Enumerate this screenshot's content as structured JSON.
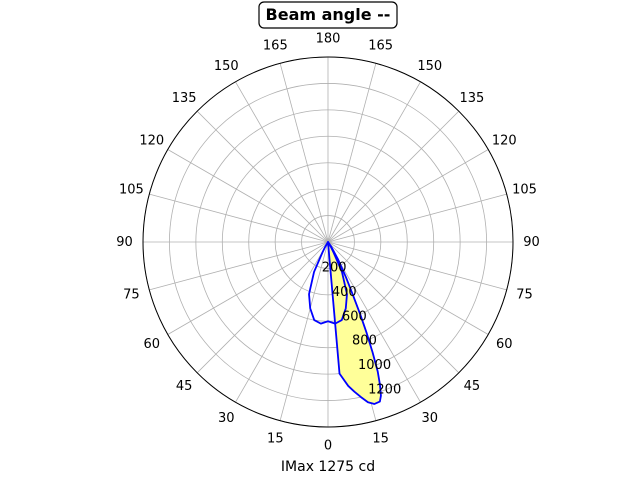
{
  "chart_data": {
    "type": "polar",
    "title": "Beam angle --",
    "xlabel": "IMax 1275 cd",
    "angle_tick_labels": [
      "0",
      "15",
      "30",
      "45",
      "60",
      "75",
      "90",
      "105",
      "120",
      "135",
      "150",
      "165",
      "180",
      "165",
      "150",
      "135",
      "120",
      "105",
      "90",
      "75",
      "60",
      "45",
      "30",
      "15"
    ],
    "radial_tick_labels": [
      "200",
      "400",
      "600",
      "800",
      "1000",
      "1200"
    ],
    "radial_ticks": [
      200,
      400,
      600,
      800,
      1000,
      1200
    ],
    "rlim": [
      0,
      1400
    ],
    "grid": true,
    "series": [
      {
        "theta_deg": [
          0,
          5,
          10,
          15,
          20,
          25,
          28,
          30,
          32,
          35,
          40,
          45,
          55,
          70,
          90
        ],
        "r": [
          600,
          620,
          600,
          520,
          420,
          250,
          90,
          50,
          0,
          0,
          0,
          0,
          0,
          0,
          0
        ],
        "mirror": true,
        "fill": false,
        "color": "#0000ff"
      },
      {
        "theta_deg": [
          0,
          5,
          8,
          10,
          12,
          14,
          16,
          18,
          19,
          20,
          21,
          22,
          23,
          24,
          25,
          27,
          30,
          35,
          40,
          45,
          60,
          80,
          90,
          120,
          150,
          180
        ],
        "r": [
          0,
          1000,
          1100,
          1150,
          1200,
          1250,
          1275,
          1270,
          1230,
          1150,
          1050,
          900,
          750,
          600,
          460,
          300,
          150,
          40,
          0,
          0,
          0,
          0,
          0,
          0,
          0,
          0
        ],
        "mirror": false,
        "fill": true,
        "fill_color": "#ffff99",
        "color": "#0000ff"
      }
    ]
  },
  "colors": {
    "curve": "#0000ff",
    "fill": "#ffff99",
    "grid": "#b0b0b0"
  }
}
